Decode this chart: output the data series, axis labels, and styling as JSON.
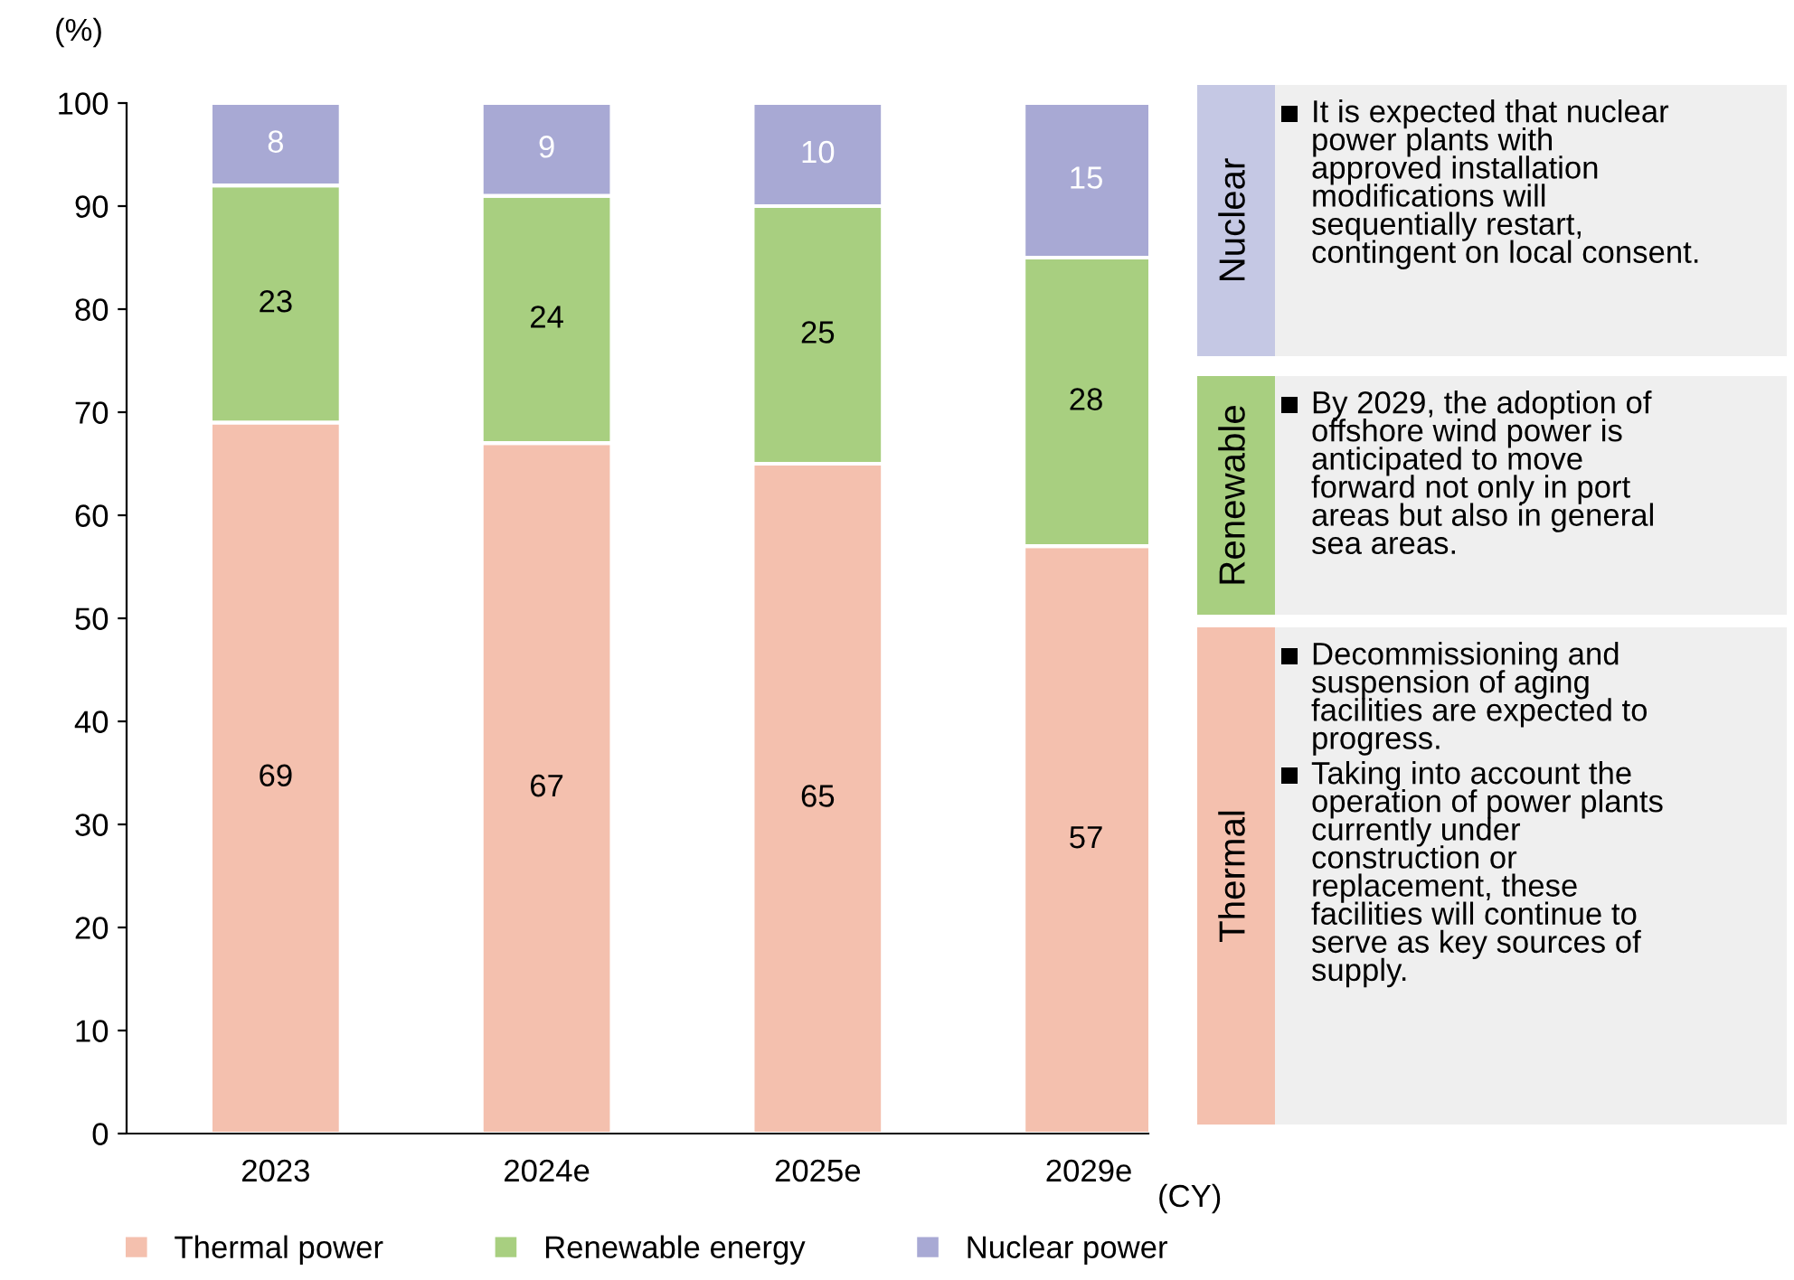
{
  "chart_data": {
    "type": "bar",
    "stacked": true,
    "ylabel": "(%)",
    "xlabel": "(CY)",
    "categories": [
      "2023",
      "2024e",
      "2025e",
      "2029e"
    ],
    "series": [
      {
        "name": "Thermal power",
        "color": "#f4c0ae",
        "values": [
          69,
          67,
          65,
          57
        ]
      },
      {
        "name": "Renewable energy",
        "color": "#a8cf80",
        "values": [
          23,
          24,
          25,
          28
        ]
      },
      {
        "name": "Nuclear power",
        "color": "#a8a9d4",
        "values": [
          8,
          9,
          10,
          15
        ]
      }
    ],
    "ylim": [
      0,
      100
    ],
    "yticks": [
      0,
      10,
      20,
      30,
      40,
      50,
      60,
      70,
      80,
      90,
      100
    ],
    "data_labels": true,
    "grid": false,
    "legend": "bottom",
    "annotations": [
      "Nuclear",
      "It is expected that nuclear\npower plants with\napproved installation\nmodifications will\nsequentially restart,\ncontingent on local consent.",
      "Renewable",
      "By 2029, the adoption of\noffshore wind power is\nanticipated to move\nforward not only in port\nareas but also in general\nsea areas.",
      "Thermal",
      "Decommissioning and\nsuspension of aging\nfacilities are expected to\nprogress.",
      "Taking into account the\noperation of power plants\ncurrently under\nconstruction or\nreplacement, these\nfacilities will continue to\nserve as key sources of\nsupply."
    ]
  }
}
